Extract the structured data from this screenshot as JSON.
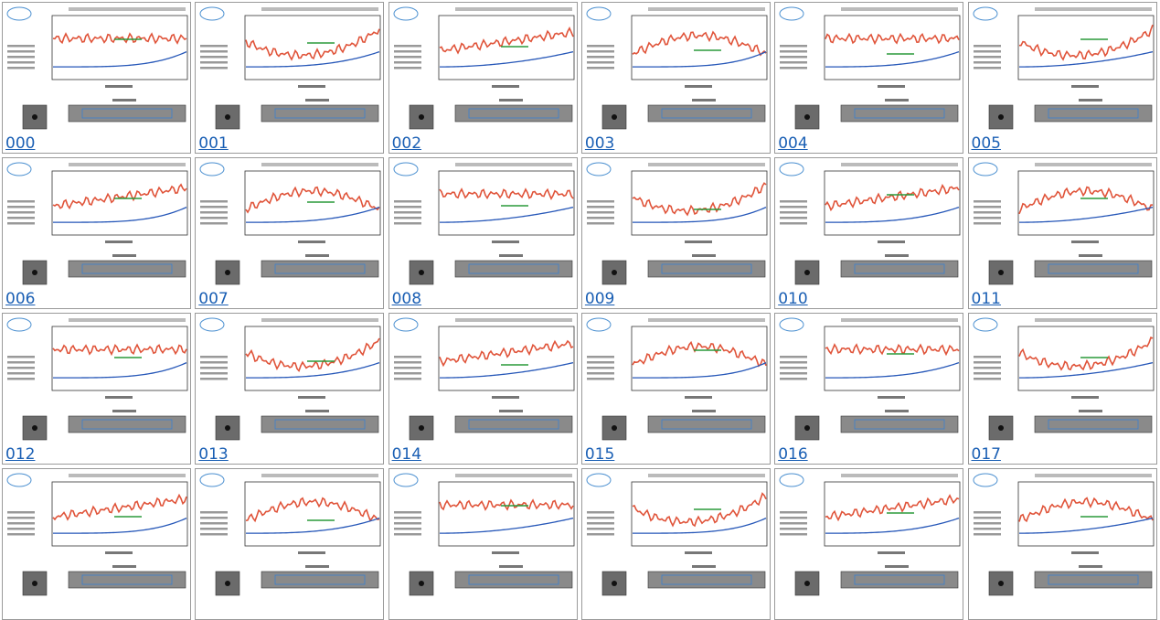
{
  "links": [
    "000",
    "001",
    "002",
    "003",
    "004",
    "005",
    "006",
    "007",
    "008",
    "009",
    "010",
    "011",
    "012",
    "013",
    "014",
    "015",
    "016",
    "017"
  ]
}
